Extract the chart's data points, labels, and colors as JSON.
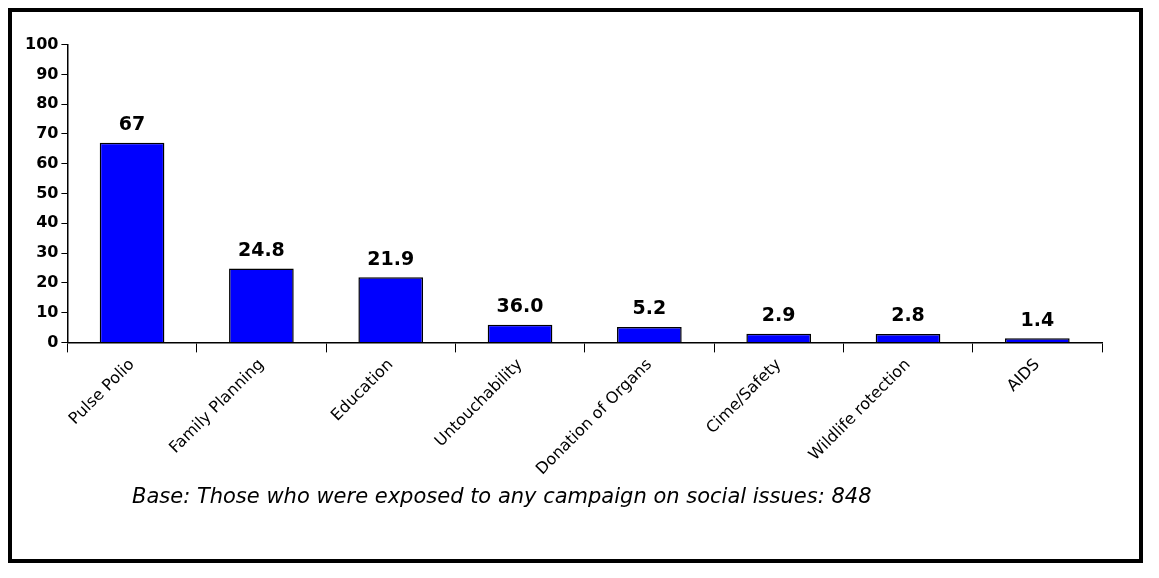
{
  "chart_data": {
    "type": "bar",
    "categories": [
      "Pulse Polio",
      "Family Planning",
      "Education",
      "Untouchability",
      "Donation of Organs",
      "Cime/Safety",
      "Wildlife rotection",
      "AIDS"
    ],
    "values": [
      67,
      24.8,
      21.9,
      5.9,
      5.2,
      2.9,
      2.8,
      1.4
    ],
    "value_labels": [
      "67",
      "24.8",
      "21.9",
      null,
      "5.2",
      "2.9",
      "2.8",
      "1.4"
    ],
    "color": "#0000ff",
    "ylim": [
      0,
      100
    ],
    "yticks": [
      0,
      10,
      20,
      30,
      40,
      50,
      60,
      70,
      80,
      90,
      100
    ],
    "grid": false,
    "legend": false,
    "annotations": [
      {
        "text": "36.0",
        "x": "Untouchability",
        "y": 5.9
      },
      "Base: Those who were exposed to any campaign on social issues: 848"
    ]
  }
}
